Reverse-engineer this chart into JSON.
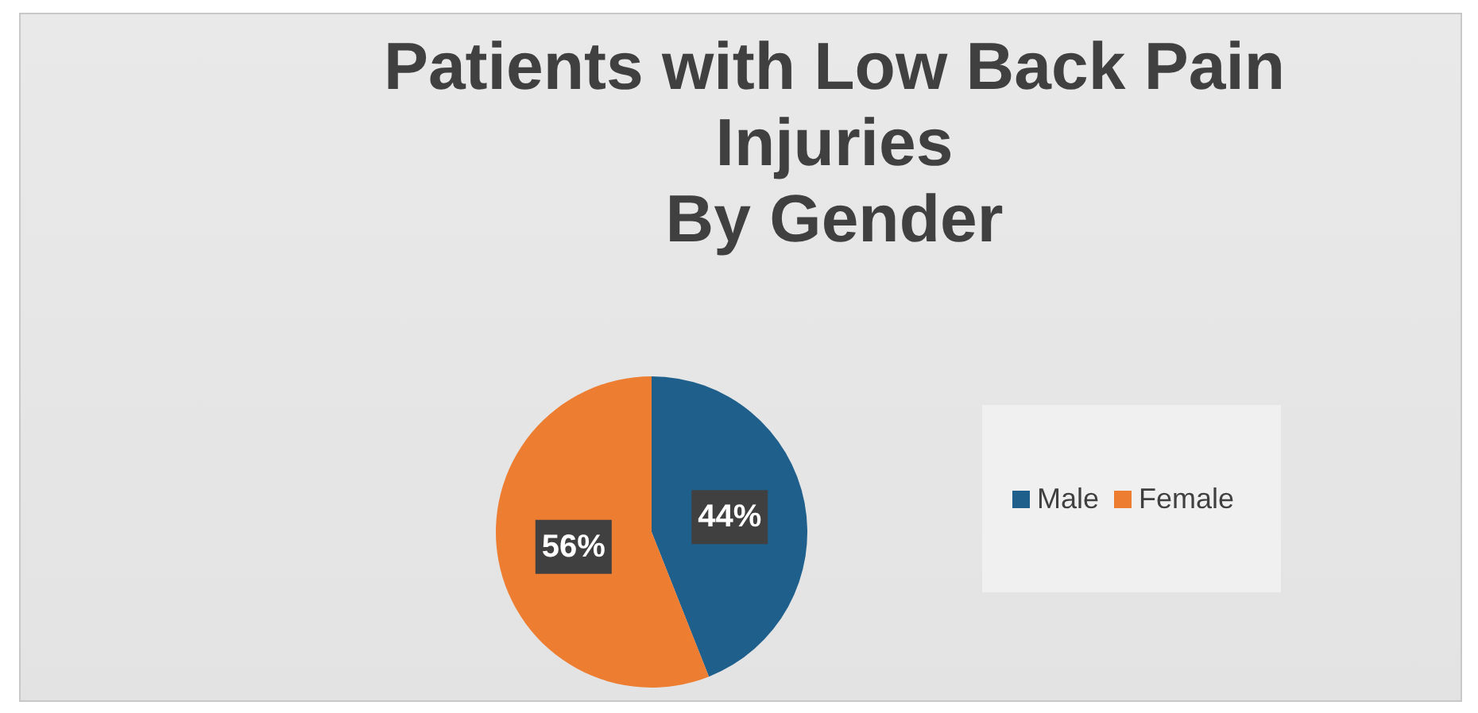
{
  "chart_data": {
    "type": "pie",
    "title": "Patients with Low Back Pain\nInjuries\nBy Gender",
    "categories": [
      "Male",
      "Female"
    ],
    "values": [
      44,
      56
    ],
    "colors": [
      "#1f5f8b",
      "#ed7d31"
    ],
    "value_labels": [
      "44%",
      "56%"
    ],
    "legend": "right"
  }
}
